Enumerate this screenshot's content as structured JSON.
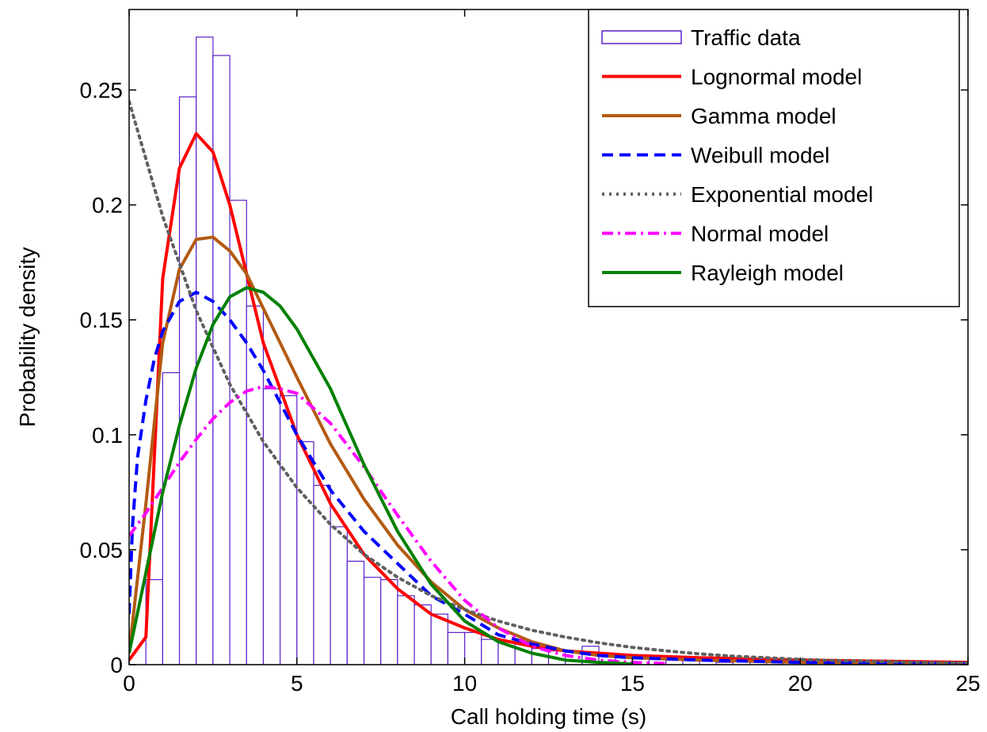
{
  "chart_data": {
    "type": "bar",
    "xlabel": "Call holding time (s)",
    "ylabel": "Probability density",
    "xlim": [
      0,
      25
    ],
    "ylim": [
      0,
      0.285
    ],
    "xticks": [
      0,
      5,
      10,
      15,
      20,
      25
    ],
    "xtick_labels": [
      "0",
      "5",
      "10",
      "15",
      "20",
      "25"
    ],
    "yticks": [
      0,
      0.05,
      0.1,
      0.15,
      0.2,
      0.25
    ],
    "ytick_labels": [
      "0",
      "0.05",
      "0.1",
      "0.15",
      "0.2",
      "0.25"
    ],
    "grid": false,
    "legend_position": "top-right",
    "histogram": {
      "name": "Traffic data",
      "color": "#5a20c8",
      "bin_width": 0.5,
      "bin_starts": [
        0.5,
        1.0,
        1.5,
        2.0,
        2.5,
        3.0,
        3.5,
        4.0,
        4.5,
        5.0,
        5.5,
        6.0,
        6.5,
        7.0,
        7.5,
        8.0,
        8.5,
        9.0,
        9.5,
        10.0,
        10.5,
        11.0,
        11.5,
        12.0,
        12.5,
        13.0,
        13.5,
        14.0,
        14.5,
        15.0,
        15.5,
        16.0,
        16.5,
        17.0,
        17.5,
        18.0,
        18.5,
        19.0,
        19.5,
        20.0,
        20.5,
        21.0,
        21.5,
        22.0,
        22.5,
        23.0,
        23.5,
        24.0,
        24.5
      ],
      "values": [
        0.037,
        0.127,
        0.247,
        0.273,
        0.265,
        0.202,
        0.156,
        0.12,
        0.117,
        0.097,
        0.078,
        0.06,
        0.045,
        0.038,
        0.037,
        0.03,
        0.026,
        0.022,
        0.014,
        0.014,
        0.011,
        0.01,
        0.01,
        0.007,
        0.006,
        0.006,
        0.008,
        0.004,
        0.004,
        0.003,
        0.003,
        0.002,
        0.002,
        0.002,
        0.001,
        0.002,
        0.001,
        0.001,
        0.001,
        0.001,
        0.001,
        0.001,
        0.001,
        0.001,
        0.001,
        0.001,
        0.001,
        0.001,
        0.001
      ]
    },
    "series": [
      {
        "name": "Lognormal model",
        "color": "#ff0000",
        "dash": "solid",
        "x": [
          0,
          0.5,
          1,
          1.5,
          2,
          2.5,
          3,
          3.5,
          4,
          5,
          6,
          7,
          8,
          9,
          10,
          11,
          12,
          13,
          14,
          15,
          17,
          20,
          25
        ],
        "y": [
          0.002,
          0.012,
          0.168,
          0.216,
          0.231,
          0.223,
          0.2,
          0.17,
          0.14,
          0.1,
          0.07,
          0.048,
          0.033,
          0.022,
          0.016,
          0.011,
          0.008,
          0.006,
          0.005,
          0.004,
          0.003,
          0.002,
          0.001
        ]
      },
      {
        "name": "Gamma model",
        "color": "#b35a12",
        "dash": "solid",
        "x": [
          0,
          0.5,
          1,
          1.5,
          2,
          2.5,
          3,
          3.5,
          4,
          5,
          6,
          7,
          8,
          9,
          10,
          11,
          12,
          13,
          14,
          15,
          17,
          20,
          25
        ],
        "y": [
          0.005,
          0.07,
          0.14,
          0.172,
          0.185,
          0.186,
          0.18,
          0.17,
          0.155,
          0.125,
          0.096,
          0.072,
          0.052,
          0.036,
          0.024,
          0.016,
          0.01,
          0.006,
          0.004,
          0.003,
          0.002,
          0.001,
          0.0005
        ]
      },
      {
        "name": "Weibull model",
        "color": "#0000ff",
        "dash": "dash",
        "x": [
          0,
          0.1,
          0.25,
          0.5,
          0.75,
          1,
          1.5,
          2,
          2.5,
          3,
          3.5,
          4,
          5,
          6,
          7,
          8,
          9,
          10,
          11,
          12,
          13,
          14,
          15,
          17,
          20,
          25
        ],
        "y": [
          0.022,
          0.06,
          0.09,
          0.115,
          0.133,
          0.145,
          0.158,
          0.162,
          0.158,
          0.15,
          0.14,
          0.128,
          0.1,
          0.076,
          0.058,
          0.044,
          0.03,
          0.022,
          0.013,
          0.009,
          0.006,
          0.004,
          0.003,
          0.002,
          0.001,
          0.0005
        ]
      },
      {
        "name": "Exponential model",
        "color": "#606060",
        "dash": "dot",
        "x": [
          0,
          1,
          2,
          3,
          4,
          5,
          6,
          7,
          8,
          9,
          10,
          11,
          12,
          13,
          14,
          15,
          16,
          17,
          18,
          19,
          20,
          21,
          22,
          23,
          24,
          25
        ],
        "y": [
          0.245,
          0.195,
          0.154,
          0.122,
          0.097,
          0.077,
          0.061,
          0.048,
          0.038,
          0.03,
          0.024,
          0.019,
          0.015,
          0.012,
          0.0095,
          0.0075,
          0.006,
          0.0047,
          0.0037,
          0.003,
          0.0023,
          0.0018,
          0.0015,
          0.0012,
          0.0009,
          0.0007
        ]
      },
      {
        "name": "Normal model",
        "color": "#ff00ff",
        "dash": "dashdot",
        "x": [
          0,
          0.5,
          1,
          1.5,
          2,
          2.5,
          3,
          3.5,
          4,
          4.5,
          5,
          6,
          7,
          8,
          9,
          10,
          11,
          12,
          13,
          14,
          15,
          16
        ],
        "y": [
          0.056,
          0.066,
          0.077,
          0.088,
          0.098,
          0.107,
          0.114,
          0.119,
          0.121,
          0.12,
          0.118,
          0.105,
          0.086,
          0.065,
          0.045,
          0.028,
          0.016,
          0.008,
          0.004,
          0.002,
          0.001,
          0.0005
        ]
      },
      {
        "name": "Rayleigh model",
        "color": "#008000",
        "dash": "solid",
        "x": [
          0,
          0.5,
          1,
          1.5,
          2,
          2.5,
          3,
          3.5,
          4,
          4.5,
          5,
          6,
          7,
          8,
          9,
          10,
          11,
          12,
          13,
          14,
          15
        ],
        "y": [
          0.005,
          0.04,
          0.075,
          0.104,
          0.129,
          0.148,
          0.16,
          0.164,
          0.162,
          0.156,
          0.146,
          0.12,
          0.087,
          0.058,
          0.035,
          0.019,
          0.01,
          0.005,
          0.002,
          0.001,
          0.0003
        ]
      }
    ]
  }
}
